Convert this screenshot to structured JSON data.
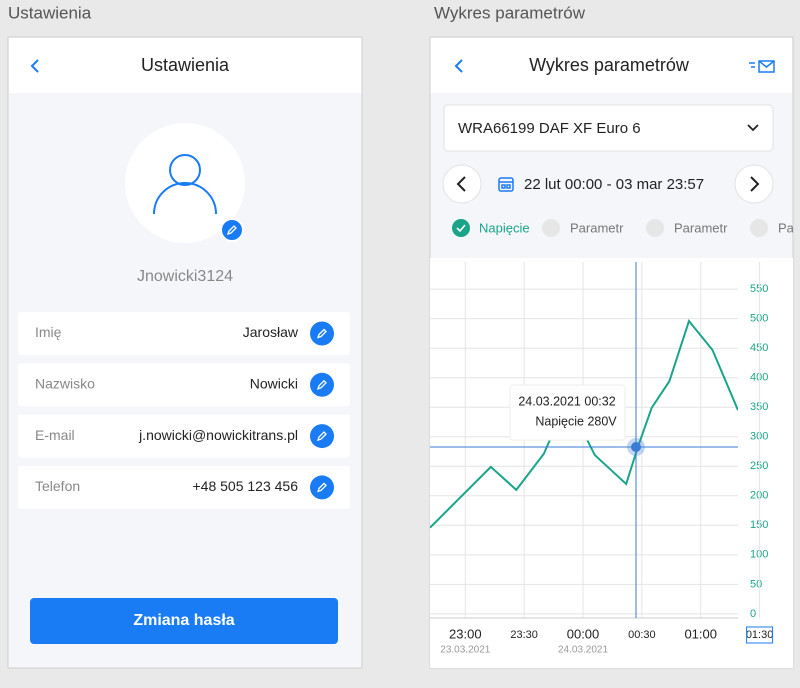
{
  "settings": {
    "caption": "Ustawienia",
    "title": "Ustawienia",
    "username": "Jnowicki3124",
    "fields": [
      {
        "label": "Imię",
        "value": "Jarosław"
      },
      {
        "label": "Nazwisko",
        "value": "Nowicki"
      },
      {
        "label": "E-mail",
        "value": "j.nowicki@nowickitrans.pl"
      },
      {
        "label": "Telefon",
        "value": "+48 505 123 456"
      }
    ],
    "button": "Zmiana hasła"
  },
  "chart_screen": {
    "caption": "Wykres parametrów",
    "title": "Wykres parametrów",
    "vehicle": "WRA66199 DAF XF Euro 6",
    "date_range": "22 lut 00:00 - 03 mar 23:57",
    "other_params": [
      "Parametr",
      "Parametr",
      "Parametr"
    ],
    "tooltip": {
      "title": "24.03.2021 00:32",
      "text": "Napięcie 280V"
    },
    "tick_dates": [
      "23.03.2021",
      "24.03.2021"
    ]
  },
  "chart_data": {
    "type": "line",
    "x": [
      "22:42",
      "23:13",
      "23:26",
      "23:40",
      "23:52",
      "00:06",
      "00:22",
      "00:28",
      "00:35",
      "00:44",
      "00:54",
      "01:06",
      "01:19"
    ],
    "series": [
      {
        "name": "Napięcie",
        "color": "#1aa58a",
        "values": [
          146,
          249,
          210,
          271,
          362,
          269,
          220,
          283,
          349,
          394,
          496,
          447,
          345
        ]
      }
    ],
    "xlim": [
      "22:42",
      "01:19"
    ],
    "xticks": [
      "23:00",
      "23:30",
      "00:00",
      "00:30",
      "01:00",
      "01:30"
    ],
    "ylim": [
      -7,
      596
    ],
    "yticks": [
      0,
      50,
      100,
      150,
      200,
      250,
      300,
      350,
      400,
      450,
      500,
      550
    ],
    "grid": true
  }
}
